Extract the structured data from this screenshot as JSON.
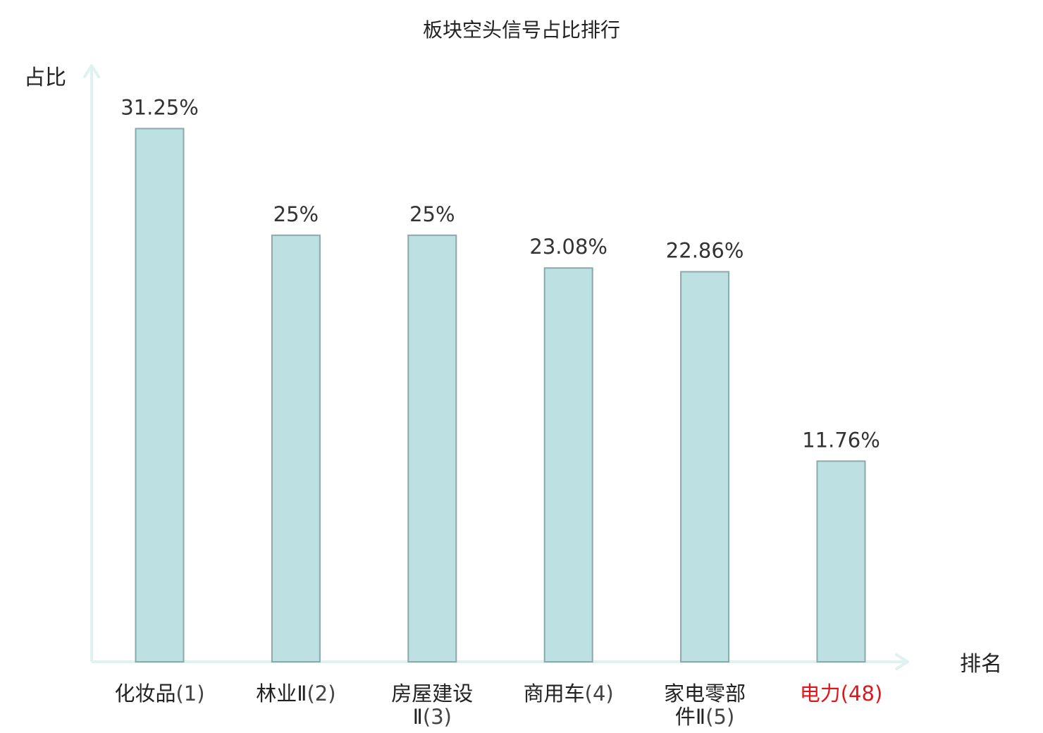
{
  "chart_data": {
    "type": "bar",
    "title": "板块空头信号占比排行",
    "xlabel": "排名",
    "ylabel": "占比",
    "ylim": [
      0,
      35
    ],
    "grid": false,
    "legend": "none",
    "categories": [
      {
        "name_lines": [
          "化妆品"
        ],
        "rank": "(1)",
        "highlight": false
      },
      {
        "name_lines": [
          "林业Ⅱ"
        ],
        "rank": "(2)",
        "highlight": false
      },
      {
        "name_lines": [
          "房屋建设",
          "Ⅱ"
        ],
        "rank": "(3)",
        "highlight": false
      },
      {
        "name_lines": [
          "商用车"
        ],
        "rank": "(4)",
        "highlight": false
      },
      {
        "name_lines": [
          "家电零部",
          "件Ⅱ"
        ],
        "rank": "(5)",
        "highlight": false
      },
      {
        "name_lines": [
          "电力"
        ],
        "rank": "(48)",
        "highlight": true
      }
    ],
    "values": [
      31.25,
      25,
      25,
      23.08,
      22.86,
      11.76
    ],
    "value_labels": [
      "31.25%",
      "25%",
      "25%",
      "23.08%",
      "22.86%",
      "11.76%"
    ]
  },
  "colors": {
    "bar_fill": "#bde0e3",
    "bar_stroke": "#8aa9ab",
    "axis": "#dff2ef",
    "text": "#222222",
    "value_text": "#333333",
    "rank_text": "#444444",
    "highlight": "#e0161d"
  }
}
